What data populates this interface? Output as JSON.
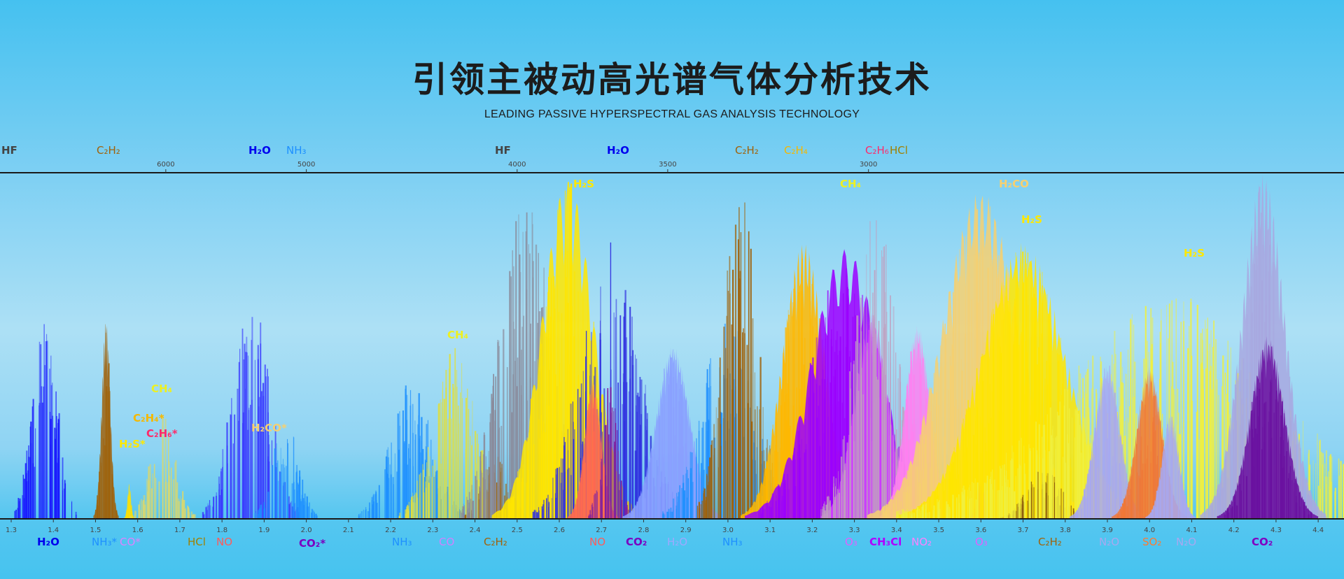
{
  "title": "引领主被动高光谱气体分析技术",
  "subtitle": "LEADING PASSIVE HYPERSPECTRAL GAS ANALYSIS TECHNOLOGY",
  "chart_data": {
    "type": "spectrum",
    "x_bottom": {
      "unit": "µm",
      "range": [
        1.3,
        4.45
      ],
      "ticks": [
        1.3,
        1.4,
        1.5,
        1.6,
        1.7,
        1.8,
        1.9,
        2.0,
        2.1,
        2.2,
        2.3,
        2.4,
        2.5,
        2.6,
        2.7,
        2.8,
        2.9,
        3.0,
        3.1,
        3.2,
        3.3,
        3.4,
        3.5,
        3.6,
        3.7,
        3.8,
        3.9,
        4.0,
        4.1,
        4.2,
        4.3,
        4.4
      ]
    },
    "x_top": {
      "unit": "cm-1",
      "ticks": [
        6000,
        5000,
        4000,
        3500,
        3000
      ]
    },
    "y_range": [
      0,
      1
    ],
    "grid": false,
    "bands": [
      {
        "gas": "H2O",
        "center": 1.38,
        "width": 0.03,
        "peak": 0.58,
        "color": "#1a1aff",
        "style": "lines"
      },
      {
        "gas": "C2H2",
        "center": 1.525,
        "width": 0.01,
        "peak": 0.57,
        "color": "#a0620a",
        "style": "fill"
      },
      {
        "gas": "H2S",
        "center": 1.58,
        "width": 0.004,
        "peak": 0.1,
        "color": "#ffe000",
        "style": "fill"
      },
      {
        "gas": "CH4",
        "center": 1.66,
        "width": 0.03,
        "peak": 0.3,
        "color": "#d8d870",
        "style": "lines"
      },
      {
        "gas": "H2O",
        "center": 1.87,
        "width": 0.045,
        "peak": 0.65,
        "color": "#3a3aff",
        "style": "lines"
      },
      {
        "gas": "NH3",
        "center": 1.95,
        "width": 0.03,
        "peak": 0.3,
        "color": "#1e90ff",
        "style": "lines"
      },
      {
        "gas": "NH3",
        "center": 2.25,
        "width": 0.05,
        "peak": 0.4,
        "color": "#1e90ff",
        "style": "lines"
      },
      {
        "gas": "CH4",
        "center": 2.35,
        "width": 0.05,
        "peak": 0.5,
        "color": "#e0e040",
        "style": "lines"
      },
      {
        "gas": "C2H2",
        "center": 2.45,
        "width": 0.03,
        "peak": 0.2,
        "color": "#a0620a",
        "style": "lines"
      },
      {
        "gas": "HF",
        "center": 2.52,
        "width": 0.06,
        "peak": 0.95,
        "color": "#8a8a9a",
        "style": "lines"
      },
      {
        "gas": "H2S",
        "center": 2.62,
        "width": 0.06,
        "peak": 0.98,
        "color": "#ffe600",
        "style": "fill"
      },
      {
        "gas": "H2O",
        "center": 2.72,
        "width": 0.07,
        "peak": 0.8,
        "color": "#3030e0",
        "style": "lines"
      },
      {
        "gas": "NO",
        "center": 2.68,
        "width": 0.02,
        "peak": 0.4,
        "color": "#ff6a50",
        "style": "fill"
      },
      {
        "gas": "CO2",
        "center": 2.72,
        "width": 0.02,
        "peak": 0.4,
        "color": "#8020a0",
        "style": "lines"
      },
      {
        "gas": "H2O",
        "center": 2.87,
        "width": 0.04,
        "peak": 0.5,
        "color": "#8aa0ff",
        "style": "fill"
      },
      {
        "gas": "NH3",
        "center": 3.0,
        "width": 0.06,
        "peak": 0.6,
        "color": "#1e90ff",
        "style": "lines"
      },
      {
        "gas": "C2H2",
        "center": 3.03,
        "width": 0.04,
        "peak": 0.98,
        "color": "#a0620a",
        "style": "lines"
      },
      {
        "gas": "C2H4",
        "center": 3.18,
        "width": 0.05,
        "peak": 0.8,
        "color": "#ffb800",
        "style": "fill"
      },
      {
        "gas": "O3",
        "center": 3.28,
        "width": 0.08,
        "peak": 0.78,
        "color": "#9b00ff",
        "style": "fill"
      },
      {
        "gas": "CH3Cl",
        "center": 3.34,
        "width": 0.04,
        "peak": 0.6,
        "color": "#d040ff",
        "style": "fill"
      },
      {
        "gas": "HCl",
        "center": 3.35,
        "width": 0.05,
        "peak": 0.9,
        "color": "#c0a0c0",
        "style": "lines"
      },
      {
        "gas": "NO2",
        "center": 3.45,
        "width": 0.03,
        "peak": 0.56,
        "color": "#ff80f0",
        "style": "fill"
      },
      {
        "gas": "H2CO",
        "center": 3.6,
        "width": 0.09,
        "peak": 0.95,
        "color": "#f6d070",
        "style": "fill"
      },
      {
        "gas": "O3",
        "center": 3.6,
        "width": 0.01,
        "peak": 0.1,
        "color": "#e060ff",
        "style": "fill"
      },
      {
        "gas": "H2S",
        "center": 3.7,
        "width": 0.1,
        "peak": 0.8,
        "color": "#ffe600",
        "style": "fill"
      },
      {
        "gas": "C2H2",
        "center": 3.75,
        "width": 0.04,
        "peak": 0.15,
        "color": "#8a5a10",
        "style": "lines"
      },
      {
        "gas": "H2S",
        "center": 4.05,
        "width": 0.25,
        "peak": 0.65,
        "color": "#f0f040",
        "style": "lines"
      },
      {
        "gas": "N2O",
        "center": 3.9,
        "width": 0.03,
        "peak": 0.45,
        "color": "#a8a8f0",
        "style": "fill"
      },
      {
        "gas": "SO2",
        "center": 4.0,
        "width": 0.03,
        "peak": 0.44,
        "color": "#f07838",
        "style": "fill"
      },
      {
        "gas": "N2O",
        "center": 4.05,
        "width": 0.02,
        "peak": 0.3,
        "color": "#a8a8f0",
        "style": "fill"
      },
      {
        "gas": "CO2",
        "center": 4.27,
        "width": 0.05,
        "peak": 1.0,
        "color": "#a8a8e0",
        "style": "fill"
      },
      {
        "gas": "CO2",
        "center": 4.28,
        "width": 0.04,
        "peak": 0.53,
        "color": "#6a10a0",
        "style": "fill"
      }
    ]
  },
  "labels": {
    "top": [
      {
        "text": "HF",
        "color": "#444444"
      },
      {
        "text": "C₂H₂",
        "color": "#a0620a"
      },
      {
        "text": "H₂O",
        "color": "#0000ee"
      },
      {
        "text": "NH₃",
        "color": "#1e90ff"
      },
      {
        "text": "HF",
        "color": "#444444"
      },
      {
        "text": "H₂O",
        "color": "#0000ee"
      },
      {
        "text": "C₂H₂",
        "color": "#a0620a"
      },
      {
        "text": "C₂H₄",
        "color": "#f5b800"
      },
      {
        "text": "C₂H₆",
        "color": "#ff2a6a"
      },
      {
        "text": "HCl",
        "color": "#a08000"
      }
    ],
    "inplot": [
      {
        "text": "H₂S",
        "color": "#ffe800"
      },
      {
        "text": "CH₄",
        "color": "#eef020"
      },
      {
        "text": "H₂CO",
        "color": "#f6d070"
      },
      {
        "text": "H₂S",
        "color": "#ffe800"
      },
      {
        "text": "H₂S",
        "color": "#ffe800"
      },
      {
        "text": "CH₄",
        "color": "#eef020"
      },
      {
        "text": "CH₄",
        "color": "#eef020"
      },
      {
        "text": "C₂H₄*",
        "color": "#f5b800"
      },
      {
        "text": "C₂H₆*",
        "color": "#ff2a6a"
      },
      {
        "text": "H₂S*",
        "color": "#ffe800"
      },
      {
        "text": "H₂CO*",
        "color": "#f6d070"
      }
    ],
    "bottom": [
      {
        "text": "H₂O",
        "color": "#0000ee"
      },
      {
        "text": "NH₃*",
        "color": "#1e90ff"
      },
      {
        "text": "CO*",
        "color": "#e080ff"
      },
      {
        "text": "HCl",
        "color": "#a08000"
      },
      {
        "text": "NO",
        "color": "#ff5a5a"
      },
      {
        "text": "CO₂*",
        "color": "#7a00c0"
      },
      {
        "text": "NH₃",
        "color": "#1e90ff"
      },
      {
        "text": "CO",
        "color": "#d080ff"
      },
      {
        "text": "C₂H₂",
        "color": "#a0620a"
      },
      {
        "text": "NO",
        "color": "#ff5a5a"
      },
      {
        "text": "CO₂",
        "color": "#7a00c0"
      },
      {
        "text": "H₂O",
        "color": "#a0a8ff"
      },
      {
        "text": "NH₃",
        "color": "#1e90ff"
      },
      {
        "text": "O₃",
        "color": "#e060ff"
      },
      {
        "text": "CH₃Cl",
        "color": "#b000ff"
      },
      {
        "text": "NO₂",
        "color": "#ff80ff"
      },
      {
        "text": "O₃",
        "color": "#e060ff"
      },
      {
        "text": "C₂H₂",
        "color": "#a0620a"
      },
      {
        "text": "N₂O",
        "color": "#a8a8f0"
      },
      {
        "text": "SO₂",
        "color": "#ff7a30"
      },
      {
        "text": "N₂O",
        "color": "#a8a8f0"
      },
      {
        "text": "CO₂",
        "color": "#8000c0"
      }
    ]
  }
}
